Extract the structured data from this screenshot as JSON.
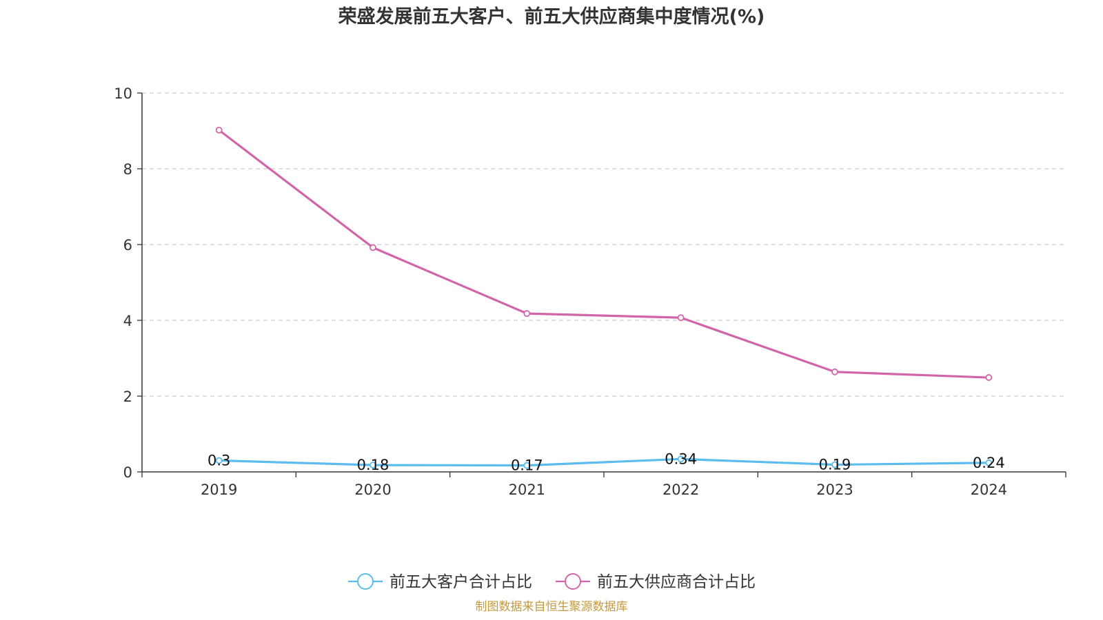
{
  "chart_data": {
    "type": "line",
    "title": "荣盛发展前五大客户、前五大供应商集中度情况(%)",
    "categories": [
      "2019",
      "2020",
      "2021",
      "2022",
      "2023",
      "2024"
    ],
    "ylim": [
      0,
      10
    ],
    "yticks": [
      0,
      2,
      4,
      6,
      8,
      10
    ],
    "ytick_labels": [
      "0",
      "2",
      "4",
      "6",
      "8",
      "10"
    ],
    "grid": true,
    "legend_position": "bottom-center",
    "series": [
      {
        "name": "前五大客户合计占比",
        "color": "#5bbcee",
        "values": [
          0.3,
          0.18,
          0.17,
          0.34,
          0.19,
          0.24
        ],
        "labels": [
          "0.3",
          "0.18",
          "0.17",
          "0.34",
          "0.19",
          "0.24"
        ]
      },
      {
        "name": "前五大供应商合计占比",
        "color": "#d264a8",
        "values": [
          9.02,
          5.92,
          4.18,
          4.07,
          2.64,
          2.49
        ],
        "labels": []
      }
    ],
    "source": "制图数据来自恒生聚源数据库"
  }
}
